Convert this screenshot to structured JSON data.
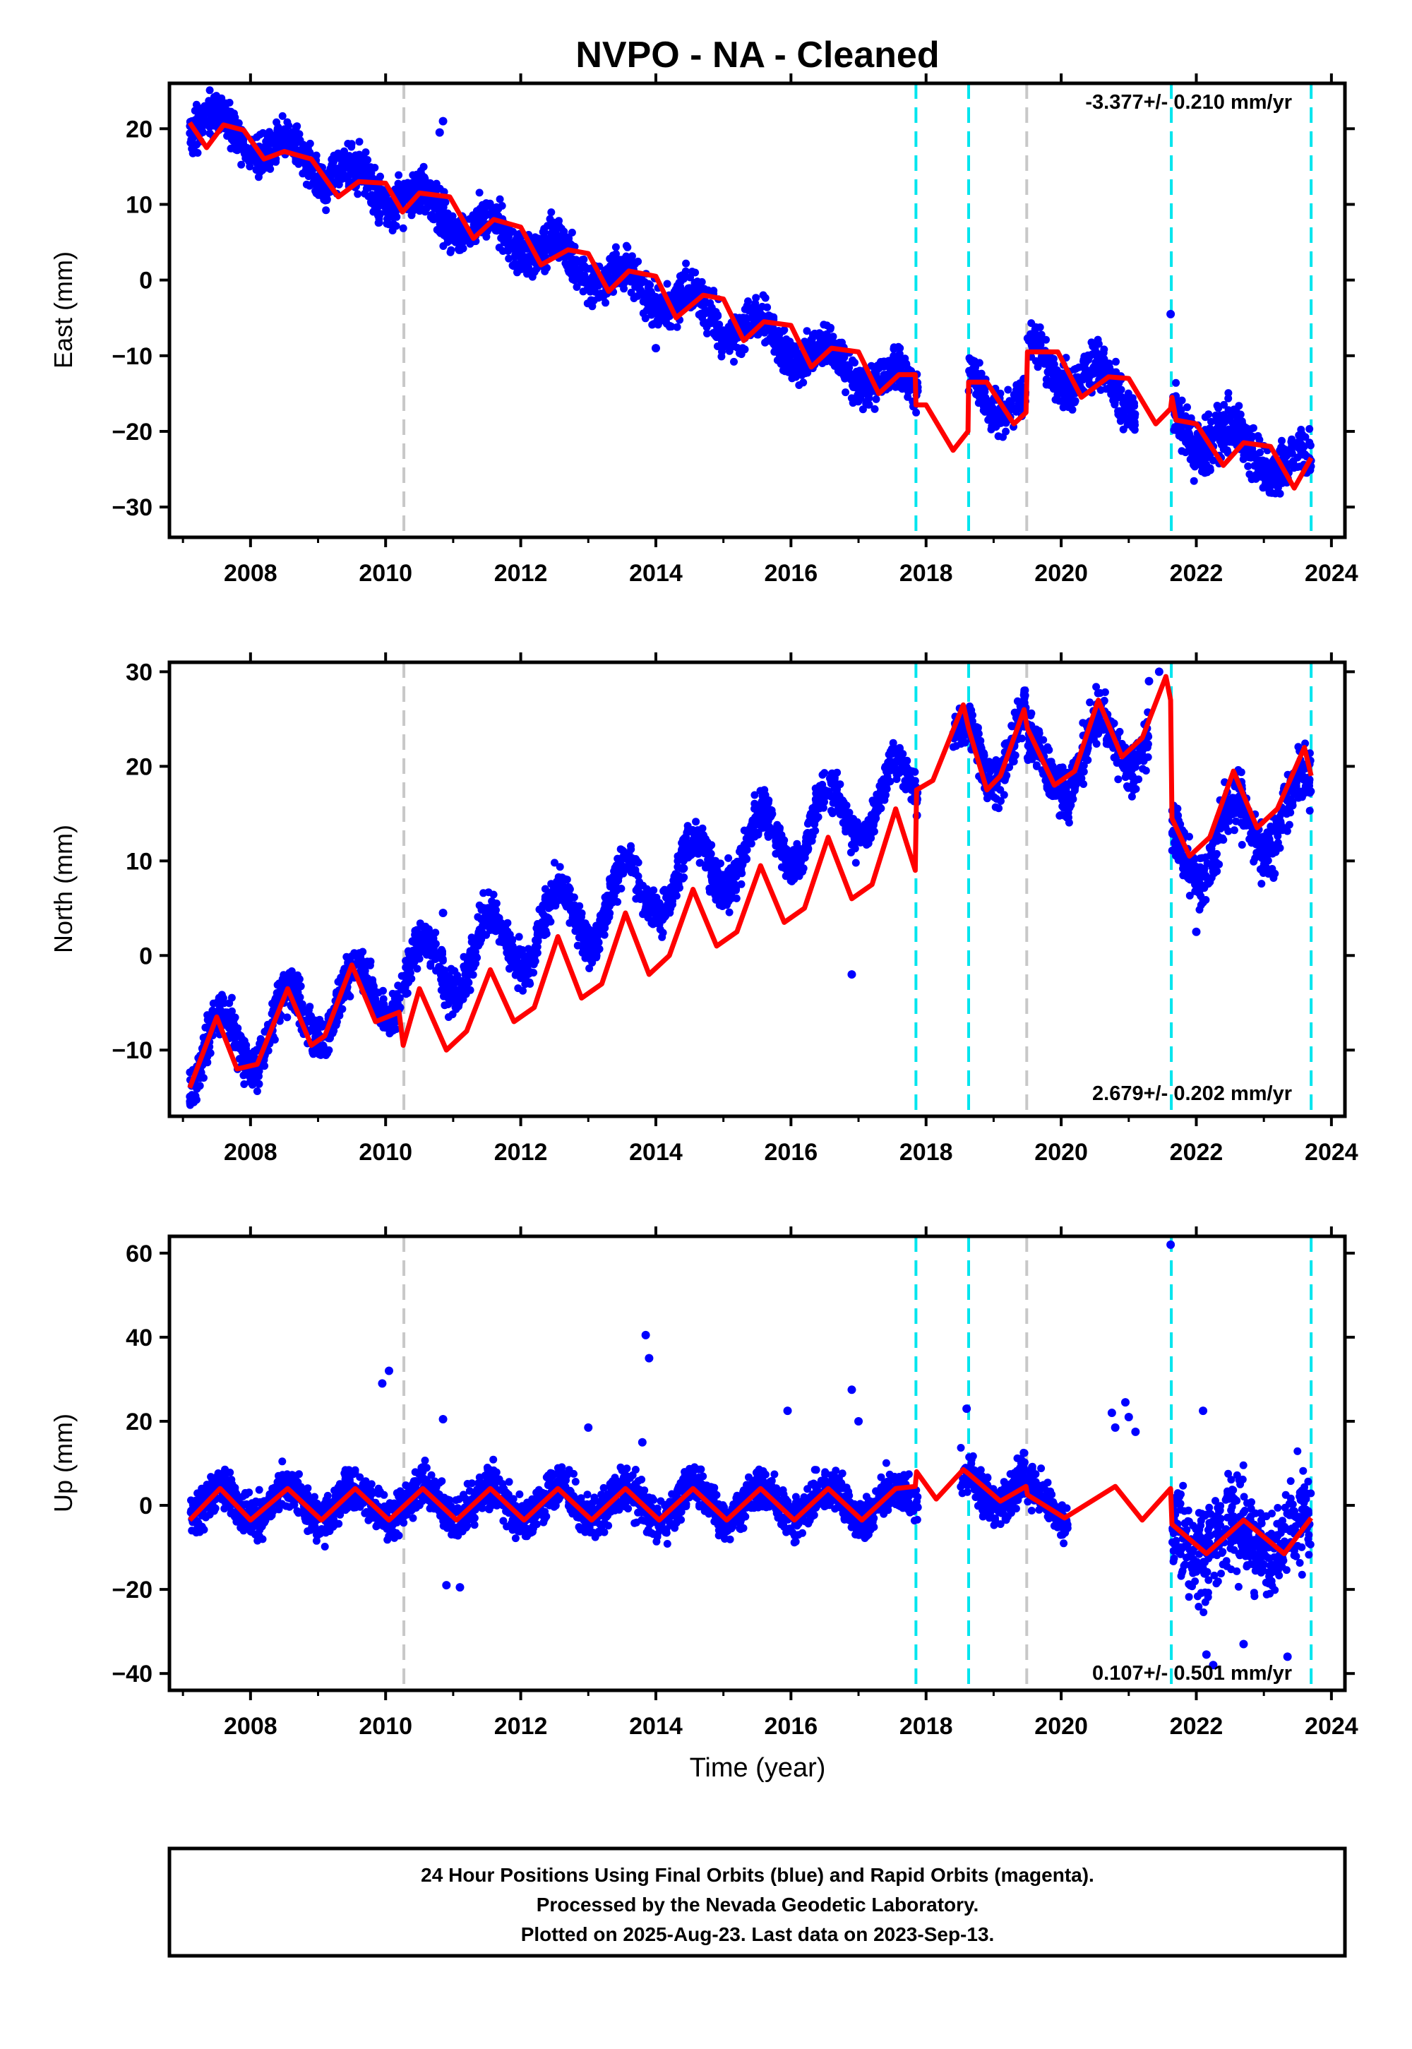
{
  "title": "NVPO  - NA - Cleaned",
  "colors": {
    "points": "#0000ff",
    "model": "#ff0000",
    "steps": "#00e5ee",
    "gray_steps": "#c8c8c8"
  },
  "chart_data": [
    {
      "type": "scatter",
      "name": "East",
      "ylabel": "East (mm)",
      "xlim": [
        2006.8,
        2024.2
      ],
      "ylim": [
        -34,
        26
      ],
      "yticks": [
        20,
        10,
        0,
        -10,
        -20,
        -30
      ],
      "xticks": [
        2008,
        2010,
        2012,
        2014,
        2016,
        2018,
        2020,
        2022,
        2024
      ],
      "rate_label": "-3.377+/- 0.210 mm/yr",
      "rate_position": "top-right",
      "model": [
        [
          2007.1,
          20.8
        ],
        [
          2007.35,
          17.5
        ],
        [
          2007.6,
          20.5
        ],
        [
          2007.9,
          19.8
        ],
        [
          2008.2,
          16.0
        ],
        [
          2008.5,
          17.0
        ],
        [
          2008.9,
          16.0
        ],
        [
          2009.3,
          11.0
        ],
        [
          2009.6,
          13.0
        ],
        [
          2010.0,
          12.8
        ],
        [
          2010.25,
          9.0
        ],
        [
          2010.5,
          11.5
        ],
        [
          2010.95,
          11.0
        ],
        [
          2011.3,
          5.5
        ],
        [
          2011.6,
          8.0
        ],
        [
          2012.0,
          7.0
        ],
        [
          2012.3,
          2.0
        ],
        [
          2012.7,
          4.0
        ],
        [
          2013.0,
          3.5
        ],
        [
          2013.3,
          -1.5
        ],
        [
          2013.6,
          1.2
        ],
        [
          2014.0,
          0.5
        ],
        [
          2014.3,
          -5.0
        ],
        [
          2014.7,
          -2.0
        ],
        [
          2015.0,
          -2.5
        ],
        [
          2015.3,
          -8.0
        ],
        [
          2015.6,
          -5.5
        ],
        [
          2016.0,
          -6.0
        ],
        [
          2016.3,
          -11.5
        ],
        [
          2016.6,
          -9.0
        ],
        [
          2017.0,
          -9.5
        ],
        [
          2017.3,
          -15.0
        ],
        [
          2017.6,
          -12.5
        ],
        [
          2017.84,
          -12.5
        ],
        [
          2017.85,
          -16.5
        ],
        [
          2018.0,
          -16.5
        ],
        [
          2018.4,
          -22.5
        ],
        [
          2018.62,
          -20.0
        ],
        [
          2018.63,
          -13.5
        ],
        [
          2018.9,
          -13.5
        ],
        [
          2019.3,
          -19.0
        ],
        [
          2019.48,
          -17.5
        ],
        [
          2019.5,
          -9.5
        ],
        [
          2019.95,
          -9.5
        ],
        [
          2020.3,
          -15.5
        ],
        [
          2020.7,
          -12.8
        ],
        [
          2021.0,
          -13.0
        ],
        [
          2021.4,
          -19.0
        ],
        [
          2021.62,
          -17.0
        ],
        [
          2021.64,
          -15.5
        ],
        [
          2021.7,
          -18.5
        ],
        [
          2022.0,
          -19.0
        ],
        [
          2022.4,
          -24.5
        ],
        [
          2022.7,
          -21.5
        ],
        [
          2023.1,
          -22.0
        ],
        [
          2023.45,
          -27.5
        ],
        [
          2023.7,
          -23.5
        ]
      ],
      "segments": [
        {
          "start": 2007.1,
          "end": 2017.84,
          "base": 21.5,
          "slope": -3.38,
          "amp": 2.0,
          "noise": 2.0
        },
        {
          "start": 2017.85,
          "end": 2017.88,
          "base": -13.5,
          "slope": -3.38,
          "amp": 2.5,
          "noise": 2.0
        },
        {
          "start": 2018.63,
          "end": 2019.48,
          "base": -14.0,
          "slope": -3.38,
          "amp": 2.5,
          "noise": 2.0
        },
        {
          "start": 2019.5,
          "end": 2021.1,
          "base": -10.0,
          "slope": -3.38,
          "amp": 2.5,
          "noise": 2.0
        },
        {
          "start": 2021.64,
          "end": 2023.7,
          "base": -18.5,
          "slope": -3.38,
          "amp": 2.5,
          "noise": 2.5
        }
      ],
      "outliers": [
        [
          2010.85,
          21.0
        ],
        [
          2010.8,
          19.5
        ],
        [
          2021.62,
          -4.5
        ],
        [
          2014.0,
          -9.0
        ],
        [
          2022.1,
          -25.0
        ]
      ]
    },
    {
      "type": "scatter",
      "name": "North",
      "ylabel": "North (mm)",
      "xlim": [
        2006.8,
        2024.2
      ],
      "ylim": [
        -17,
        31
      ],
      "yticks": [
        30,
        20,
        10,
        0,
        -10
      ],
      "xticks": [
        2008,
        2010,
        2012,
        2014,
        2016,
        2018,
        2020,
        2022,
        2024
      ],
      "rate_label": "2.679+/- 0.202 mm/yr",
      "rate_position": "bottom-right",
      "model": [
        [
          2007.1,
          -14.0
        ],
        [
          2007.5,
          -6.5
        ],
        [
          2007.8,
          -12.0
        ],
        [
          2008.1,
          -11.5
        ],
        [
          2008.55,
          -3.5
        ],
        [
          2008.9,
          -9.5
        ],
        [
          2009.1,
          -8.5
        ],
        [
          2009.5,
          -1.0
        ],
        [
          2009.85,
          -7.0
        ],
        [
          2010.2,
          -6.0
        ],
        [
          2010.26,
          -9.5
        ],
        [
          2010.5,
          -3.5
        ],
        [
          2010.9,
          -10.0
        ],
        [
          2011.2,
          -8.0
        ],
        [
          2011.55,
          -1.5
        ],
        [
          2011.9,
          -7.0
        ],
        [
          2012.2,
          -5.5
        ],
        [
          2012.55,
          2.0
        ],
        [
          2012.9,
          -4.5
        ],
        [
          2013.2,
          -3.0
        ],
        [
          2013.55,
          4.5
        ],
        [
          2013.9,
          -2.0
        ],
        [
          2014.2,
          0.0
        ],
        [
          2014.55,
          7.0
        ],
        [
          2014.9,
          1.0
        ],
        [
          2015.2,
          2.5
        ],
        [
          2015.55,
          9.5
        ],
        [
          2015.9,
          3.5
        ],
        [
          2016.2,
          5.0
        ],
        [
          2016.55,
          12.5
        ],
        [
          2016.9,
          6.0
        ],
        [
          2017.2,
          7.5
        ],
        [
          2017.55,
          15.5
        ],
        [
          2017.84,
          9.0
        ],
        [
          2017.86,
          17.5
        ],
        [
          2018.1,
          18.5
        ],
        [
          2018.55,
          26.5
        ],
        [
          2018.63,
          24.0
        ],
        [
          2018.9,
          17.5
        ],
        [
          2019.1,
          19.0
        ],
        [
          2019.45,
          26.0
        ],
        [
          2019.5,
          24.0
        ],
        [
          2019.9,
          18.0
        ],
        [
          2020.2,
          19.5
        ],
        [
          2020.55,
          27.0
        ],
        [
          2020.9,
          21.0
        ],
        [
          2021.2,
          23.0
        ],
        [
          2021.55,
          29.5
        ],
        [
          2021.62,
          27.0
        ],
        [
          2021.64,
          14.5
        ],
        [
          2021.9,
          10.5
        ],
        [
          2022.2,
          12.5
        ],
        [
          2022.55,
          19.5
        ],
        [
          2022.9,
          13.5
        ],
        [
          2023.2,
          15.5
        ],
        [
          2023.6,
          22.0
        ],
        [
          2023.7,
          19.0
        ]
      ],
      "segments": [
        {
          "start": 2007.1,
          "end": 2017.84,
          "base": -11.0,
          "slope": 2.68,
          "amp": 3.5,
          "noise": 1.6
        },
        {
          "start": 2017.85,
          "end": 2017.88,
          "base": 16.5,
          "slope": 2.68,
          "amp": 3.0,
          "noise": 1.5
        },
        {
          "start": 2018.4,
          "end": 2019.48,
          "base": 20.5,
          "slope": 2.68,
          "amp": 4.0,
          "noise": 2.0
        },
        {
          "start": 2019.5,
          "end": 2021.3,
          "base": 19.0,
          "slope": 2.68,
          "amp": 3.5,
          "noise": 2.0
        },
        {
          "start": 2021.64,
          "end": 2023.7,
          "base": 10.5,
          "slope": 2.68,
          "amp": 3.5,
          "noise": 2.2
        }
      ],
      "outliers": [
        [
          2010.85,
          4.5
        ],
        [
          2010.4,
          1.5
        ],
        [
          2016.9,
          -2.0
        ],
        [
          2022.0,
          2.5
        ],
        [
          2021.3,
          29.0
        ],
        [
          2021.45,
          30.0
        ]
      ]
    },
    {
      "type": "scatter",
      "name": "Up",
      "ylabel": "Up (mm)",
      "xlabel": "Time (year)",
      "xlim": [
        2006.8,
        2024.2
      ],
      "ylim": [
        -44,
        64
      ],
      "yticks": [
        60,
        40,
        20,
        0,
        -20,
        -40
      ],
      "xticks": [
        2008,
        2010,
        2012,
        2014,
        2016,
        2018,
        2020,
        2022,
        2024
      ],
      "rate_label": "0.107+/- 0.501 mm/yr",
      "rate_position": "bottom-right",
      "model": [
        [
          2007.1,
          -3.5
        ],
        [
          2007.55,
          4.0
        ],
        [
          2008.0,
          -3.5
        ],
        [
          2008.55,
          4.0
        ],
        [
          2009.05,
          -3.5
        ],
        [
          2009.55,
          4.0
        ],
        [
          2010.05,
          -3.5
        ],
        [
          2010.55,
          4.0
        ],
        [
          2011.05,
          -3.5
        ],
        [
          2011.55,
          4.0
        ],
        [
          2012.05,
          -3.5
        ],
        [
          2012.55,
          4.0
        ],
        [
          2013.05,
          -3.5
        ],
        [
          2013.55,
          4.0
        ],
        [
          2014.05,
          -3.5
        ],
        [
          2014.55,
          4.0
        ],
        [
          2015.05,
          -3.5
        ],
        [
          2015.55,
          4.0
        ],
        [
          2016.05,
          -3.5
        ],
        [
          2016.55,
          4.0
        ],
        [
          2017.05,
          -3.5
        ],
        [
          2017.55,
          4.0
        ],
        [
          2017.84,
          4.5
        ],
        [
          2017.86,
          8.0
        ],
        [
          2018.15,
          1.5
        ],
        [
          2018.55,
          8.5
        ],
        [
          2018.63,
          7.5
        ],
        [
          2019.1,
          1.0
        ],
        [
          2019.48,
          4.5
        ],
        [
          2019.5,
          2.5
        ],
        [
          2020.05,
          -3.0
        ],
        [
          2020.8,
          4.5
        ],
        [
          2021.2,
          -3.5
        ],
        [
          2021.62,
          4.0
        ],
        [
          2021.64,
          -4.5
        ],
        [
          2022.15,
          -11.5
        ],
        [
          2022.7,
          -3.5
        ],
        [
          2023.3,
          -11.5
        ],
        [
          2023.7,
          -3.0
        ]
      ],
      "segments": [
        {
          "start": 2007.1,
          "end": 2017.84,
          "base": 0.5,
          "slope": 0.0,
          "amp": 4.0,
          "noise": 3.5
        },
        {
          "start": 2017.85,
          "end": 2017.88,
          "base": 3.0,
          "slope": 0.0,
          "amp": 4.0,
          "noise": 3.5
        },
        {
          "start": 2018.5,
          "end": 2019.48,
          "base": 4.0,
          "slope": 0.0,
          "amp": 4.0,
          "noise": 4.0
        },
        {
          "start": 2019.5,
          "end": 2020.1,
          "base": 1.0,
          "slope": 0.0,
          "amp": 4.0,
          "noise": 3.5
        },
        {
          "start": 2021.64,
          "end": 2023.7,
          "base": -7.5,
          "slope": 0.0,
          "amp": 4.0,
          "noise": 8.0
        }
      ],
      "outliers": [
        [
          2010.05,
          32.0
        ],
        [
          2009.95,
          29.0
        ],
        [
          2013.85,
          40.5
        ],
        [
          2013.9,
          35.0
        ],
        [
          2010.85,
          20.5
        ],
        [
          2010.9,
          -19.0
        ],
        [
          2011.1,
          -19.5
        ],
        [
          2013.0,
          18.5
        ],
        [
          2013.8,
          15.0
        ],
        [
          2016.9,
          27.5
        ],
        [
          2017.0,
          20.0
        ],
        [
          2015.95,
          22.5
        ],
        [
          2020.75,
          22.0
        ],
        [
          2020.8,
          18.5
        ],
        [
          2020.95,
          24.5
        ],
        [
          2021.0,
          21.0
        ],
        [
          2021.1,
          17.5
        ],
        [
          2021.62,
          62.0
        ],
        [
          2022.15,
          -35.5
        ],
        [
          2022.25,
          -38.0
        ],
        [
          2022.7,
          -33.0
        ],
        [
          2023.35,
          -36.0
        ],
        [
          2022.1,
          22.5
        ],
        [
          2018.6,
          23.0
        ]
      ]
    }
  ],
  "step_lines": {
    "cyan": [
      2017.85,
      2018.63,
      2021.63,
      2023.7
    ],
    "gray": [
      2010.27,
      2019.49
    ]
  },
  "footer": {
    "line1": "24 Hour Positions Using Final Orbits (blue) and Rapid Orbits (magenta).",
    "line2": "Processed by the Nevada Geodetic Laboratory.",
    "line3": "Plotted on 2025-Aug-23. Last data on 2023-Sep-13."
  }
}
